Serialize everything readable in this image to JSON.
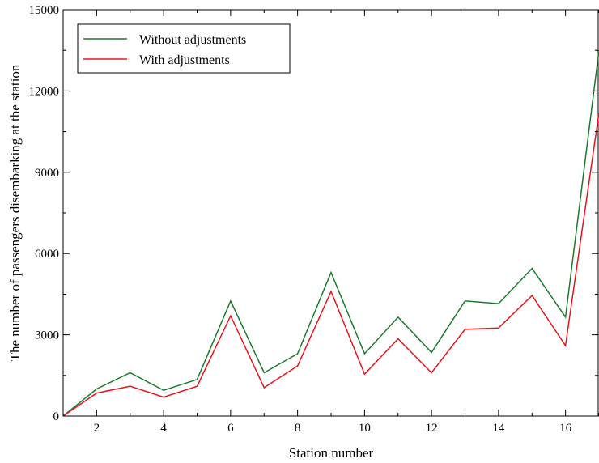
{
  "chart_data": {
    "type": "line",
    "xlabel": "Station number",
    "ylabel": "The number of passengers disembarking at the station",
    "xlim": [
      1,
      17
    ],
    "ylim": [
      0,
      15000
    ],
    "x": [
      1,
      2,
      3,
      4,
      5,
      6,
      7,
      8,
      9,
      10,
      11,
      12,
      13,
      14,
      15,
      16,
      17
    ],
    "xticks": [
      2,
      4,
      6,
      8,
      10,
      12,
      14,
      16
    ],
    "yticks": [
      0,
      3000,
      6000,
      9000,
      12000,
      15000
    ],
    "grid": false,
    "legend_position": "top-left",
    "series": [
      {
        "name": "Without adjustments",
        "color": "#1a7a2e",
        "values": [
          0,
          1000,
          1600,
          950,
          1350,
          4250,
          1600,
          2300,
          5300,
          2300,
          3650,
          2350,
          4250,
          4150,
          5450,
          3650,
          13500
        ]
      },
      {
        "name": "With adjustments",
        "color": "#e8141c",
        "values": [
          0,
          850,
          1100,
          700,
          1100,
          3700,
          1050,
          1850,
          4600,
          1550,
          2850,
          1600,
          3200,
          3250,
          4450,
          2600,
          11200
        ]
      }
    ]
  }
}
